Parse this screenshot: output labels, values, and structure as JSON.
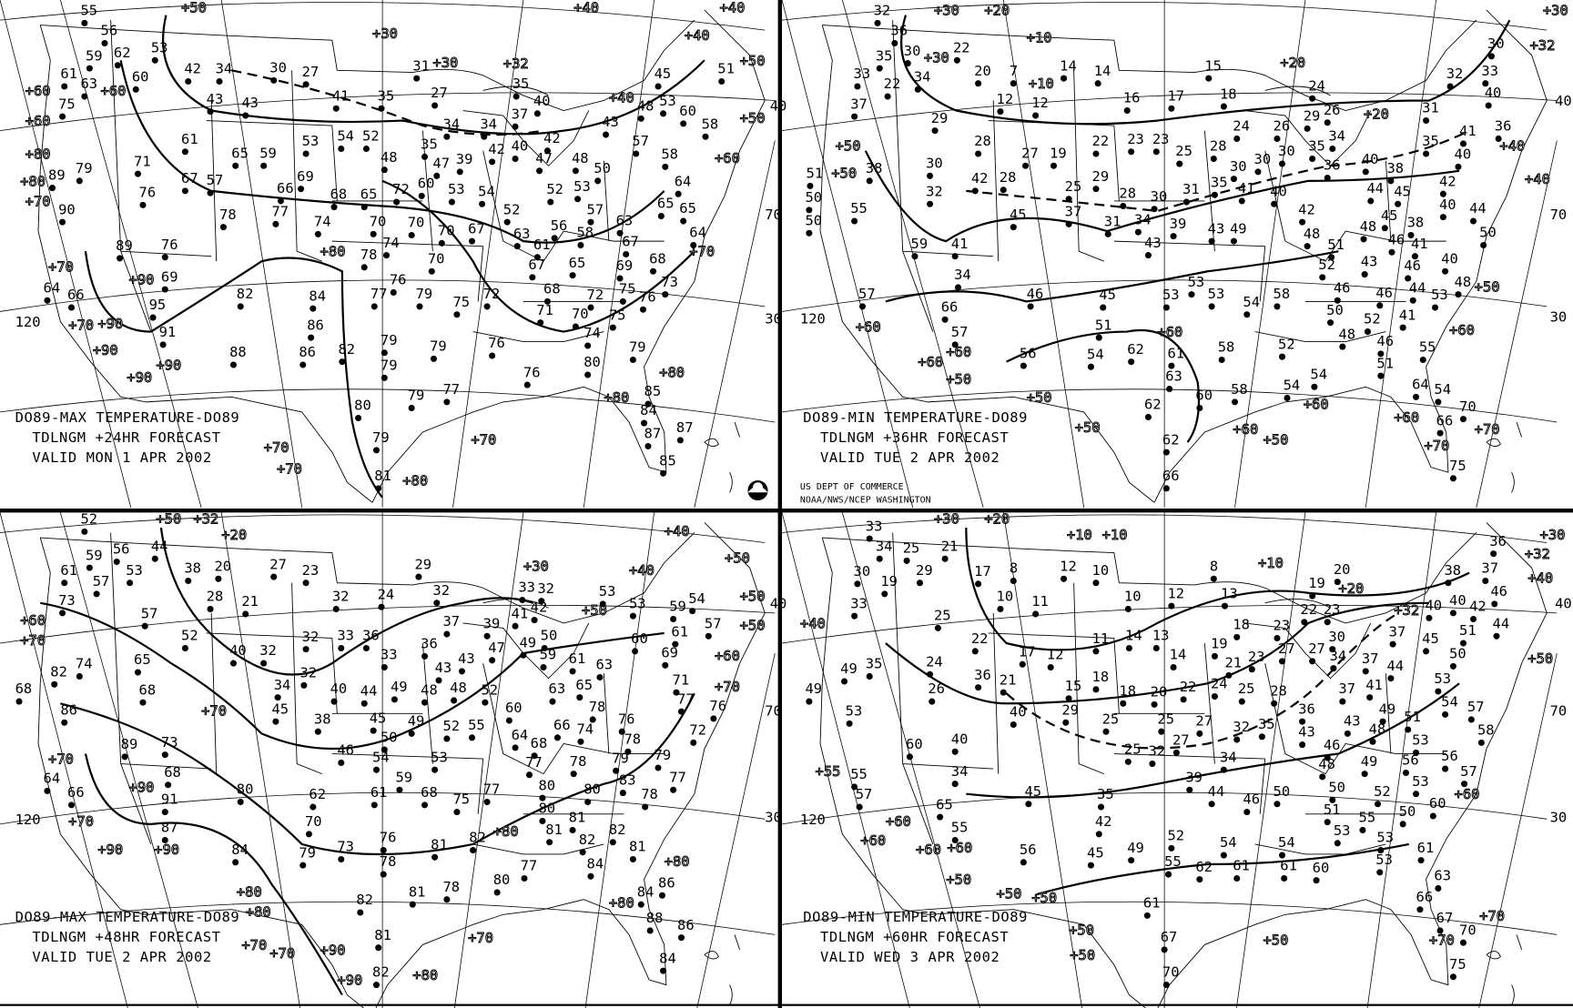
{
  "credits": {
    "line1": "US DEPT OF COMMERCE",
    "line2": "NOAA/NWS/NCEP WASHINGTON"
  },
  "colors": {
    "background": "#ffffff",
    "ink": "#000000"
  },
  "icons": {
    "logo": "noaa-logo"
  },
  "panels": [
    {
      "caption": [
        "DO89-MAX TEMPERATURE-DO89",
        "TDLNGM +24HR FORECAST",
        "VALID MON  1 APR 2002"
      ],
      "graticule_labels": [
        "120",
        "30",
        "40",
        "70"
      ],
      "stations": [
        "55",
        "56",
        "53",
        "62",
        "60",
        "59",
        "61",
        "63",
        "75",
        "42",
        "34",
        "43",
        "43",
        "30",
        "27",
        "41",
        "35",
        "31",
        "27",
        "34",
        "35",
        "34",
        "37",
        "40",
        "35",
        "42",
        "47",
        "40",
        "48",
        "43",
        "48",
        "45",
        "53",
        "51",
        "60",
        "58",
        "57",
        "58",
        "61",
        "65",
        "59",
        "53",
        "54",
        "52",
        "48",
        "47",
        "39",
        "42",
        "54",
        "52",
        "53",
        "50",
        "52",
        "56",
        "57",
        "58",
        "63",
        "61",
        "63",
        "64",
        "65",
        "65",
        "67",
        "64",
        "68",
        "69",
        "73",
        "75",
        "72",
        "76",
        "75",
        "74",
        "70",
        "71",
        "68",
        "65",
        "67",
        "69",
        "66",
        "68",
        "65",
        "72",
        "60",
        "53",
        "71",
        "67",
        "57",
        "76",
        "78",
        "77",
        "74",
        "70",
        "74",
        "70",
        "70",
        "67",
        "70",
        "72",
        "75",
        "76",
        "79",
        "77",
        "78",
        "84",
        "86",
        "86",
        "82",
        "79",
        "79",
        "79",
        "76",
        "76",
        "77",
        "79",
        "80",
        "79",
        "85",
        "84",
        "87",
        "87",
        "85",
        "80",
        "79",
        "81",
        "88",
        "82",
        "89",
        "95",
        "91",
        "69",
        "76",
        "90",
        "89",
        "79",
        "66",
        "64"
      ],
      "contour_labels": [
        "+50",
        "+30",
        "+30",
        "+32",
        "+40",
        "+40",
        "+40",
        "+50",
        "+50",
        "+60",
        "+40",
        "+60",
        "+60",
        "+80",
        "+80",
        "+70",
        "+70",
        "+80",
        "+90",
        "+70",
        "+90",
        "+90",
        "+90",
        "+90",
        "+80",
        "+80",
        "+70",
        "+70",
        "+70",
        "+70",
        "+80",
        "+60"
      ]
    },
    {
      "caption": [
        "DO89-MIN TEMPERATURE-DO89",
        "TDLNGM +36HR FORECAST",
        "VALID TUE  2 APR 2002"
      ],
      "graticule_labels": [
        "120",
        "30",
        "40",
        "70"
      ],
      "stations": [
        "32",
        "36",
        "35",
        "30",
        "22",
        "33",
        "22",
        "34",
        "37",
        "20",
        "7",
        "12",
        "12",
        "14",
        "14",
        "15",
        "16",
        "17",
        "18",
        "24",
        "26",
        "29",
        "28",
        "27",
        "19",
        "22",
        "23",
        "23",
        "25",
        "28",
        "24",
        "26",
        "29",
        "34",
        "30",
        "35",
        "36",
        "31",
        "32",
        "33",
        "30",
        "40",
        "41",
        "36",
        "35",
        "40",
        "40",
        "38",
        "45",
        "44",
        "42",
        "40",
        "44",
        "50",
        "38",
        "41",
        "45",
        "48",
        "46",
        "42",
        "48",
        "51",
        "52",
        "43",
        "46",
        "40",
        "44",
        "48",
        "53",
        "46",
        "46",
        "50",
        "52",
        "41",
        "48",
        "46",
        "30",
        "32",
        "42",
        "28",
        "25",
        "29",
        "28",
        "30",
        "31",
        "35",
        "30",
        "30",
        "41",
        "40",
        "37",
        "31",
        "34",
        "43",
        "39",
        "43",
        "49",
        "45",
        "41",
        "59",
        "34",
        "46",
        "45",
        "53",
        "53",
        "53",
        "54",
        "58",
        "57",
        "55",
        "38",
        "51",
        "50",
        "50",
        "66",
        "57",
        "51",
        "56",
        "54",
        "62",
        "61",
        "63",
        "58",
        "52",
        "54",
        "51",
        "55",
        "54",
        "62",
        "60",
        "58",
        "54",
        "62",
        "66",
        "64",
        "66",
        "70",
        "75"
      ],
      "contour_labels": [
        "+30",
        "+20",
        "+10",
        "+30",
        "+10",
        "+20",
        "+30",
        "+32",
        "+20",
        "+40",
        "+40",
        "+50",
        "+50",
        "+50",
        "+50",
        "+60",
        "+60",
        "+60",
        "+60",
        "+50",
        "+60",
        "+50",
        "+60",
        "+60",
        "+60",
        "+50",
        "+70",
        "+70"
      ]
    },
    {
      "caption": [
        "DO89-MAX TEMPERATURE-DO89",
        "TDLNGM +48HR FORECAST",
        "VALID TUE  2 APR 2002"
      ],
      "graticule_labels": [
        "120",
        "30",
        "40",
        "70"
      ],
      "stations": [
        "52",
        "59",
        "56",
        "53",
        "57",
        "61",
        "44",
        "38",
        "20",
        "28",
        "21",
        "27",
        "23",
        "29",
        "32",
        "24",
        "73",
        "57",
        "52",
        "40",
        "32",
        "32",
        "33",
        "36",
        "33",
        "32",
        "36",
        "37",
        "39",
        "41",
        "33",
        "32",
        "42",
        "50",
        "49",
        "43",
        "43",
        "47",
        "48",
        "48",
        "49",
        "44",
        "40",
        "34",
        "32",
        "45",
        "38",
        "46",
        "45",
        "49",
        "50",
        "54",
        "52",
        "55",
        "53",
        "52",
        "60",
        "59",
        "61",
        "63",
        "65",
        "63",
        "60",
        "61",
        "53",
        "54",
        "59",
        "57",
        "53",
        "69",
        "71",
        "77",
        "76",
        "72",
        "76",
        "78",
        "79",
        "77",
        "78",
        "68",
        "64",
        "66",
        "74",
        "78",
        "77",
        "80",
        "78",
        "79",
        "83",
        "80",
        "81",
        "82",
        "82",
        "81",
        "73",
        "68",
        "65",
        "68",
        "74",
        "82",
        "86",
        "89",
        "91",
        "87",
        "80",
        "84",
        "62",
        "61",
        "59",
        "68",
        "75",
        "77",
        "70",
        "73",
        "76",
        "78",
        "81",
        "79",
        "82",
        "81",
        "82",
        "81",
        "78",
        "80",
        "77",
        "81",
        "80",
        "84",
        "82",
        "84",
        "86",
        "88",
        "86",
        "84",
        "66",
        "64",
        "68"
      ],
      "contour_labels": [
        "+50",
        "+32",
        "+20",
        "+30",
        "+40",
        "+50",
        "+50",
        "+50",
        "+60",
        "+70",
        "+40",
        "+50",
        "+60",
        "+70",
        "+70",
        "+90",
        "+70",
        "+90",
        "+90",
        "+70",
        "+80",
        "+80",
        "+70",
        "+70",
        "+90",
        "+90",
        "+80",
        "+80",
        "+80",
        "+70",
        "+80"
      ]
    },
    {
      "caption": [
        "DO89-MIN TEMPERATURE-DO89",
        "TDLNGM +60HR FORECAST",
        "VALID WED  3 APR 2002"
      ],
      "graticule_labels": [
        "120",
        "30",
        "40",
        "70"
      ],
      "stations": [
        "33",
        "34",
        "25",
        "30",
        "19",
        "29",
        "21",
        "33",
        "25",
        "17",
        "8",
        "10",
        "11",
        "12",
        "10",
        "8",
        "19",
        "23",
        "20",
        "10",
        "12",
        "13",
        "18",
        "19",
        "22",
        "23",
        "27",
        "30",
        "34",
        "37",
        "40",
        "37",
        "38",
        "37",
        "36",
        "40",
        "42",
        "46",
        "51",
        "44",
        "45",
        "50",
        "44",
        "53",
        "54",
        "57",
        "58",
        "49",
        "48",
        "43",
        "37",
        "41",
        "36",
        "43",
        "46",
        "48",
        "49",
        "51",
        "53",
        "56",
        "56",
        "53",
        "57",
        "60",
        "52",
        "50",
        "51",
        "53",
        "55",
        "53",
        "50",
        "60",
        "53",
        "61",
        "22",
        "17",
        "12",
        "11",
        "14",
        "13",
        "14",
        "24",
        "26",
        "36",
        "21",
        "15",
        "18",
        "18",
        "20",
        "22",
        "24",
        "21",
        "23",
        "25",
        "27",
        "28",
        "29",
        "25",
        "25",
        "27",
        "27",
        "32",
        "35",
        "34",
        "25",
        "32",
        "39",
        "44",
        "46",
        "50",
        "35",
        "42",
        "45",
        "49",
        "52",
        "55",
        "54",
        "54",
        "40",
        "40",
        "35",
        "49",
        "49",
        "53",
        "60",
        "34",
        "45",
        "55",
        "57",
        "65",
        "55",
        "56",
        "62",
        "61",
        "61",
        "61",
        "67",
        "70",
        "66",
        "63",
        "67",
        "70",
        "75"
      ],
      "contour_labels": [
        "+30",
        "+20",
        "+10",
        "+10",
        "+10",
        "+20",
        "+32",
        "+30",
        "+32",
        "+40",
        "+50",
        "+40",
        "+55",
        "+60",
        "+60",
        "+60",
        "+60",
        "+50",
        "+50",
        "+50",
        "+50",
        "+50",
        "+50",
        "+60",
        "+70",
        "+70"
      ]
    }
  ]
}
